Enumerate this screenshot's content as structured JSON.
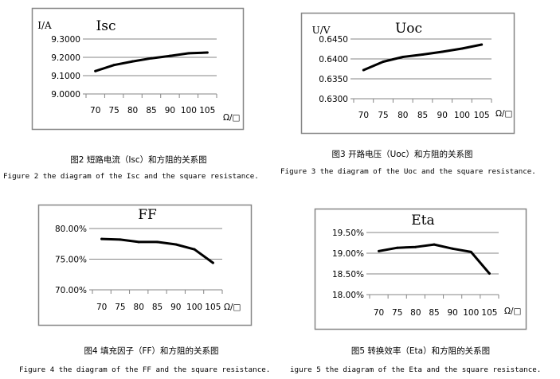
{
  "chart_data": [
    {
      "type": "line",
      "title": "Isc",
      "ylabel": "I/A",
      "xlabel": "Ω/□",
      "categories": [
        "70",
        "75",
        "80",
        "85",
        "90",
        "100",
        "105"
      ],
      "values": [
        9.125,
        9.158,
        9.178,
        9.195,
        9.208,
        9.222,
        9.226
      ],
      "ylim": [
        9.0,
        9.3
      ],
      "yticks": [
        "9.0000",
        "9.1000",
        "9.2000",
        "9.3000"
      ],
      "grid": true,
      "caption_cn": "图2 短路电流（Isc）和方阻的关系图",
      "caption_en": "Figure 2 the diagram of the Isc and the square resistance."
    },
    {
      "type": "line",
      "title": "Uoc",
      "ylabel": "U/V",
      "xlabel": "Ω/□",
      "categories": [
        "70",
        "75",
        "80",
        "85",
        "90",
        "100",
        "105"
      ],
      "values": [
        0.6372,
        0.6393,
        0.6405,
        0.6411,
        0.6418,
        0.6426,
        0.6436
      ],
      "ylim": [
        0.63,
        0.645
      ],
      "yticks": [
        "0.6300",
        "0.6350",
        "0.6400",
        "0.6450"
      ],
      "grid": true,
      "caption_cn": "图3 开路电压（Uoc）和方阻的关系图",
      "caption_en": "Figure 3 the diagram of the Uoc and the square resistance."
    },
    {
      "type": "line",
      "title": "FF",
      "ylabel": "",
      "xlabel": "Ω/□",
      "categories": [
        "70",
        "75",
        "80",
        "85",
        "90",
        "100",
        "105"
      ],
      "values": [
        78.3,
        78.2,
        77.8,
        77.8,
        77.4,
        76.6,
        74.4
      ],
      "ylim": [
        70,
        80
      ],
      "yticks": [
        "70.00%",
        "75.00%",
        "80.00%"
      ],
      "grid": true,
      "caption_cn": "图4 填充因子（FF）和方阻的关系图",
      "caption_en": "Figure 4 the diagram of the FF and the square resistance."
    },
    {
      "type": "line",
      "title": "Eta",
      "ylabel": "",
      "xlabel": "Ω/□",
      "categories": [
        "70",
        "75",
        "80",
        "85",
        "90",
        "100",
        "105"
      ],
      "values": [
        19.05,
        19.13,
        19.15,
        19.21,
        19.11,
        19.03,
        18.51
      ],
      "ylim": [
        18.0,
        19.5
      ],
      "yticks": [
        "18.00%",
        "18.50%",
        "19.00%",
        "19.50%"
      ],
      "grid": true,
      "caption_cn": "图5 转换效率（Eta）和方阻的关系图",
      "caption_en": "igure 5 the diagram of the Eta and the square resistance."
    }
  ],
  "colors": {
    "line": "#000000",
    "grid": "#868686",
    "frame": "#868686"
  }
}
